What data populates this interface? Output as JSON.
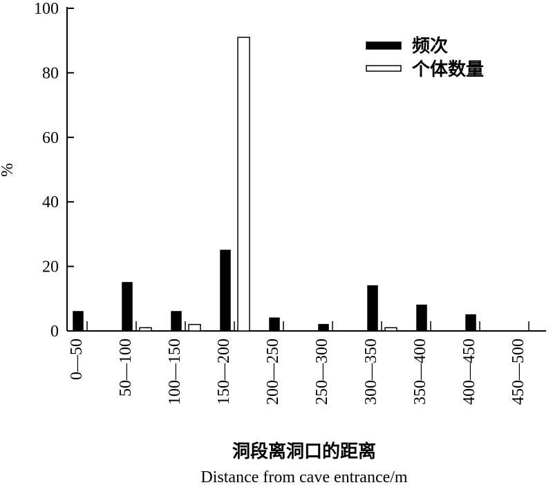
{
  "chart_data": {
    "type": "bar",
    "categories": [
      "0—50",
      "50—100",
      "100—150",
      "150—200",
      "200—250",
      "250—300",
      "300—350",
      "350—400",
      "400—450",
      "450—500"
    ],
    "series": [
      {
        "name": "频次",
        "color": "#000000",
        "values": [
          6,
          15,
          6,
          25,
          4,
          2,
          14,
          8,
          5,
          0
        ]
      },
      {
        "name": "个体数量",
        "color": "#ffffff",
        "values": [
          0,
          1,
          2,
          91,
          0,
          0,
          1,
          0,
          0,
          0
        ]
      }
    ],
    "ylim": [
      0,
      100
    ],
    "yticks": [
      0,
      20,
      40,
      60,
      80,
      100
    ],
    "y_label": "%",
    "x_label": "洞段离洞口的距离",
    "x_label_en": "Distance from cave entrance/m",
    "legend": "upper-right"
  }
}
